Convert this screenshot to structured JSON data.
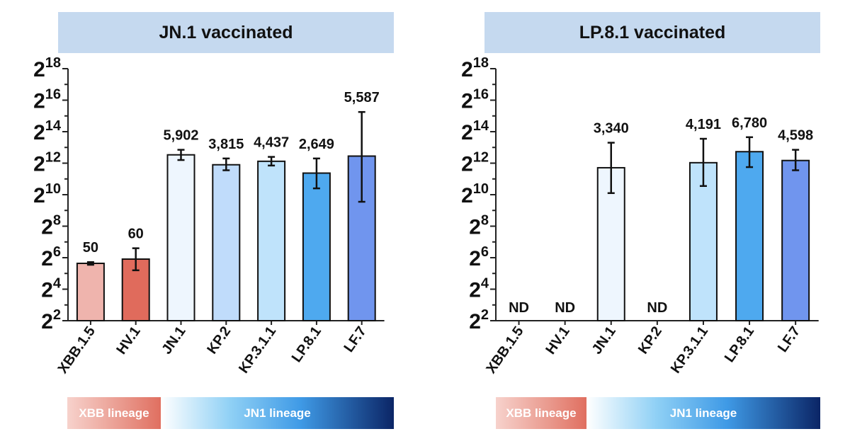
{
  "chart_data": [
    {
      "type": "bar",
      "title": "JN.1 vaccinated",
      "y_scale": "log2",
      "ylim_exponent": [
        2,
        18
      ],
      "ytick_exponents": [
        2,
        4,
        6,
        8,
        10,
        12,
        14,
        16,
        18
      ],
      "ytick_base": "2",
      "categories": [
        "XBB.1.5",
        "HV.1",
        "JN.1",
        "KP.2",
        "KP.3.1.1",
        "LP.8.1",
        "LF.7"
      ],
      "value_exponents": [
        5.64,
        5.91,
        12.53,
        11.9,
        12.12,
        11.37,
        12.45
      ],
      "error_exponents": [
        [
          5.55,
          5.72
        ],
        [
          5.2,
          6.6
        ],
        [
          12.2,
          12.85
        ],
        [
          11.55,
          12.3
        ],
        [
          11.85,
          12.4
        ],
        [
          10.4,
          12.3
        ],
        [
          9.55,
          15.25
        ]
      ],
      "labels": [
        "50",
        "60",
        "5,902",
        "3,815",
        "4,437",
        "2,649",
        "5,587"
      ],
      "colors": [
        "#efb4ad",
        "#e06b5c",
        "#eef6fe",
        "#c0dcfb",
        "#bfe3fb",
        "#4ea9ef",
        "#7095ee"
      ],
      "lineages": [
        {
          "label": "XBB lineage",
          "categories": [
            "XBB.1.5",
            "HV.1"
          ]
        },
        {
          "label": "JN1 lineage",
          "categories": [
            "JN.1",
            "KP.2",
            "KP.3.1.1",
            "LP.8.1",
            "LF.7"
          ]
        }
      ]
    },
    {
      "type": "bar",
      "title": "LP.8.1 vaccinated",
      "y_scale": "log2",
      "ylim_exponent": [
        2,
        18
      ],
      "ytick_exponents": [
        2,
        4,
        6,
        8,
        10,
        12,
        14,
        16,
        18
      ],
      "ytick_base": "2",
      "categories": [
        "XBB.1.5",
        "HV.1",
        "JN.1",
        "KP.2",
        "KP.3.1.1",
        "LP.8.1",
        "LF.7"
      ],
      "value_exponents": [
        null,
        null,
        11.71,
        null,
        12.03,
        12.73,
        12.17
      ],
      "error_exponents": [
        null,
        null,
        [
          10.1,
          13.3
        ],
        null,
        [
          10.55,
          13.55
        ],
        [
          11.75,
          13.65
        ],
        [
          11.55,
          12.85
        ]
      ],
      "labels": [
        "ND",
        "ND",
        "3,340",
        "ND",
        "4,191",
        "6,780",
        "4,598"
      ],
      "colors": [
        "#efb4ad",
        "#e06b5c",
        "#eef6fe",
        "#c0dcfb",
        "#bfe3fb",
        "#4ea9ef",
        "#7095ee"
      ],
      "lineages": [
        {
          "label": "XBB lineage",
          "categories": [
            "XBB.1.5",
            "HV.1"
          ]
        },
        {
          "label": "JN1 lineage",
          "categories": [
            "JN.1",
            "KP.2",
            "KP.3.1.1",
            "LP.8.1",
            "LF.7"
          ]
        }
      ]
    }
  ]
}
